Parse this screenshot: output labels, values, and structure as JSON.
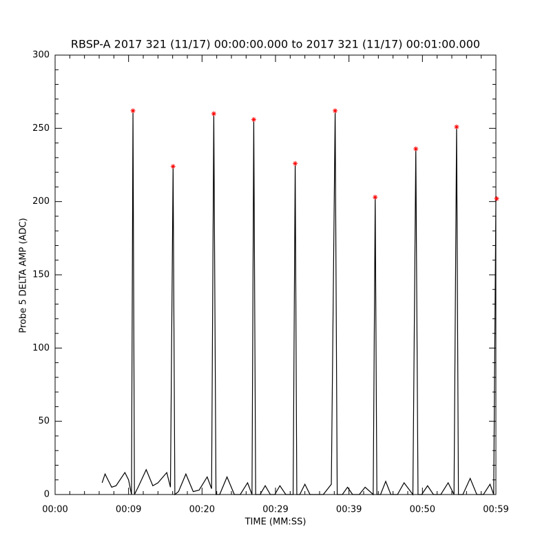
{
  "chart_data": {
    "type": "line",
    "title": "RBSP-A 2017 321 (11/17) 00:00:00.000 to 2017 321 (11/17) 00:01:00.000",
    "xlabel": "TIME (MM:SS)",
    "ylabel": "Probe 5 DELTA AMP (ADC)",
    "xlim": [
      0,
      60
    ],
    "ylim": [
      0,
      300
    ],
    "xticks": [
      {
        "value": 0,
        "label": "00:00"
      },
      {
        "value": 10,
        "label": "00:09"
      },
      {
        "value": 20,
        "label": "00:20"
      },
      {
        "value": 30,
        "label": "00:29"
      },
      {
        "value": 40,
        "label": "00:39"
      },
      {
        "value": 50,
        "label": "00:50"
      },
      {
        "value": 60,
        "label": "00:59"
      }
    ],
    "yticks": [
      0,
      50,
      100,
      150,
      200,
      250,
      300
    ],
    "minor_xticks": [
      2,
      4,
      6,
      8,
      12,
      14,
      16,
      18,
      22,
      24,
      26,
      28,
      32,
      34,
      36,
      38,
      42,
      44,
      46,
      48,
      52,
      54,
      56,
      58
    ],
    "minor_yticks": [
      10,
      20,
      30,
      40,
      60,
      70,
      80,
      90,
      110,
      120,
      130,
      140,
      160,
      170,
      180,
      190,
      210,
      220,
      230,
      240,
      260,
      270,
      280,
      290
    ],
    "series": [
      {
        "color": "#000000",
        "marker": "none",
        "x": [
          6.4,
          6.8,
          7.2,
          7.7,
          8.3,
          9.5,
          10.0,
          10.4,
          10.6,
          10.8,
          11.3,
          12.4,
          13.3,
          14.0,
          15.2,
          15.7,
          16.06,
          16.3,
          16.8,
          17.8,
          18.8,
          19.6,
          20.7,
          21.3,
          21.6,
          21.9,
          22.4,
          23.4,
          24.4,
          25.2,
          26.2,
          26.8,
          27.04,
          27.3,
          27.9,
          28.6,
          29.3,
          29.9,
          30.6,
          31.4,
          32.4,
          32.68,
          32.9,
          33.3,
          34.0,
          34.7,
          35.6,
          36.5,
          37.6,
          38.12,
          38.4,
          39.1,
          39.8,
          40.5,
          41.4,
          42.2,
          43.3,
          43.57,
          43.8,
          44.3,
          45.0,
          45.7,
          46.6,
          47.5,
          48.7,
          49.1,
          49.4,
          49.9,
          50.7,
          51.5,
          52.5,
          53.5,
          54.3,
          54.65,
          54.9,
          55.5,
          56.5,
          57.4,
          58.3,
          59.2,
          59.7,
          60.0
        ],
        "values": [
          8,
          14,
          10,
          5,
          6,
          15,
          10,
          0,
          262,
          0,
          5,
          17,
          6,
          8,
          15,
          5,
          224,
          0,
          2,
          14,
          2,
          3,
          12,
          4,
          260,
          0,
          0,
          12,
          0,
          0,
          8,
          0,
          256,
          0,
          0,
          6,
          0,
          0,
          6,
          0,
          0,
          226,
          0,
          0,
          7,
          0,
          0,
          0,
          7,
          262,
          0,
          0,
          5,
          0,
          0,
          5,
          0,
          203,
          0,
          0,
          9,
          0,
          0,
          8,
          0,
          236,
          0,
          0,
          6,
          0,
          0,
          8,
          0,
          251,
          0,
          0,
          11,
          0,
          0,
          7,
          0,
          202
        ]
      },
      {
        "color": "#ff0000",
        "marker": "asterisk",
        "x": [
          10.6,
          16.06,
          21.6,
          27.04,
          32.68,
          38.12,
          43.57,
          49.1,
          54.65,
          60.1
        ],
        "values": [
          262,
          224,
          260,
          256,
          226,
          262,
          203,
          236,
          251,
          202
        ]
      }
    ]
  }
}
